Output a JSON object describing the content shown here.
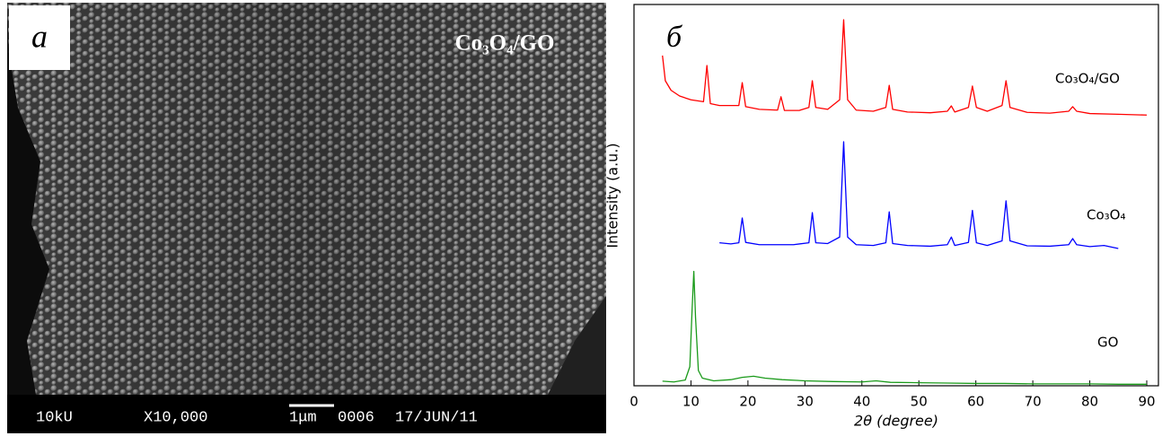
{
  "image_panel": {
    "label": "а",
    "caption": "Co₃O₄/GO",
    "info": [
      "10kU",
      "X10,000",
      "1μm",
      "0006",
      "17/JUN/11"
    ]
  },
  "chart_data": {
    "type": "line",
    "panel_label": "б",
    "x_label": "2θ (degree)",
    "y_label": "Intensity (a.u.)",
    "xlim": [
      0,
      90
    ],
    "xticks": [
      0,
      10,
      20,
      30,
      40,
      50,
      60,
      70,
      80,
      90
    ],
    "ylim": [
      0,
      100
    ],
    "series": [
      {
        "name": "Co₃O₄/GO",
        "color": "#ff0000",
        "x": [
          5,
          5.5,
          6.5,
          8,
          10,
          12.2,
          12.8,
          13.4,
          15,
          18.4,
          19,
          19.6,
          22,
          25.2,
          25.8,
          26.4,
          29,
          30.7,
          31.3,
          31.9,
          34,
          36.1,
          36.8,
          37.5,
          39,
          42,
          44.2,
          44.8,
          45.4,
          48,
          52,
          55,
          55.7,
          56.3,
          58.7,
          59.4,
          60.1,
          62,
          64.6,
          65.3,
          66,
          69,
          73,
          76.3,
          77,
          77.7,
          80,
          85,
          90
        ],
        "values": [
          86.6,
          80,
          77.5,
          76,
          75,
          74.5,
          84,
          74,
          73.5,
          73.5,
          79.5,
          73.2,
          72.5,
          72.3,
          75.8,
          72.2,
          72.2,
          73,
          80,
          73,
          72.5,
          75,
          96,
          75,
          72.3,
          72,
          73,
          78.8,
          72.5,
          71.8,
          71.6,
          72,
          73.4,
          71.8,
          73,
          78.6,
          73,
          72,
          73.5,
          80,
          73,
          71.7,
          71.5,
          72,
          73.2,
          72,
          71.4,
          71.2,
          71
        ]
      },
      {
        "name": "Co₃O₄",
        "color": "#0000ff",
        "x": [
          15,
          17,
          18.4,
          19,
          19.6,
          22,
          25,
          28,
          30.7,
          31.3,
          31.9,
          34,
          36.1,
          36.8,
          37.5,
          39,
          42,
          44.2,
          44.8,
          45.4,
          48,
          52,
          55,
          55.7,
          56.3,
          58.7,
          59.4,
          60.1,
          62,
          64.6,
          65.3,
          66,
          69,
          73,
          76.3,
          77,
          77.7,
          80,
          82.5,
          85
        ],
        "values": [
          37.5,
          37.2,
          37.5,
          44,
          37.6,
          37,
          37,
          37,
          37.5,
          45.4,
          37.5,
          37.3,
          39,
          64,
          39,
          37,
          36.8,
          37.5,
          45.6,
          37.3,
          36.8,
          36.6,
          37,
          39,
          36.8,
          37.6,
          46,
          37.5,
          36.8,
          38,
          48.5,
          38,
          36.7,
          36.6,
          37,
          38.6,
          37,
          36.5,
          36.8,
          36
        ]
      },
      {
        "name": "GO",
        "color": "#1a9a1a",
        "x": [
          5,
          7,
          9,
          9.8,
          10.2,
          10.5,
          10.8,
          11.3,
          12,
          14,
          17,
          19,
          21,
          23,
          26,
          30,
          35,
          40,
          42.5,
          45,
          50,
          55,
          60,
          65,
          70,
          75,
          80,
          85,
          90
        ],
        "values": [
          1.2,
          1.0,
          1.5,
          5,
          20,
          30,
          18,
          4,
          2,
          1.3,
          1.6,
          2.2,
          2.5,
          2,
          1.6,
          1.3,
          1.1,
          1.0,
          1.3,
          0.9,
          0.8,
          0.7,
          0.6,
          0.6,
          0.5,
          0.5,
          0.5,
          0.4,
          0.4
        ]
      }
    ]
  }
}
